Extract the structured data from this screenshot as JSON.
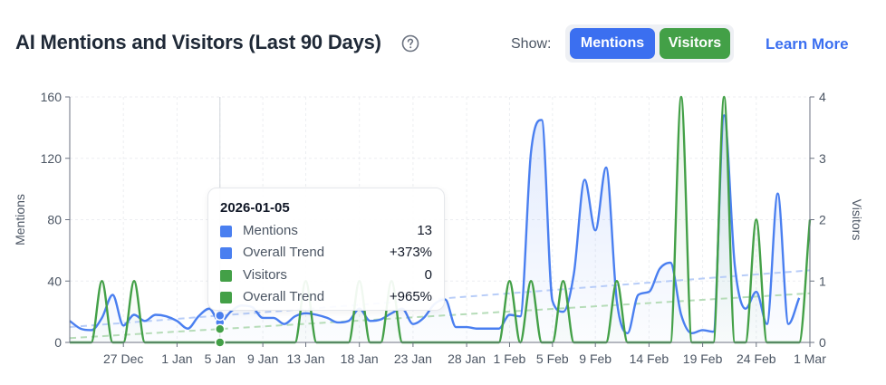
{
  "header": {
    "title": "AI Mentions and Visitors (Last 90 Days)",
    "show_label": "Show:",
    "mentions_button": "Mentions",
    "visitors_button": "Visitors",
    "learn_more": "Learn More",
    "help_icon": "question-circle-icon"
  },
  "colors": {
    "mentions": "#4a7ff0",
    "visitors": "#43a047",
    "mentions_trend": "#b8cdf8",
    "visitors_trend": "#b6dcb8"
  },
  "tooltip": {
    "date": "2026-01-05",
    "rows": [
      {
        "label": "Mentions",
        "value": "13",
        "color": "#4a7ff0"
      },
      {
        "label": "Overall Trend",
        "value": "+373%",
        "color": "#4a7ff0"
      },
      {
        "label": "Visitors",
        "value": "0",
        "color": "#43a047"
      },
      {
        "label": "Overall Trend",
        "value": "+965%",
        "color": "#43a047"
      }
    ]
  },
  "chart_data": {
    "type": "line",
    "x_start": "2025-12-22",
    "x_end": "2026-03-01",
    "xtick_labels": [
      "27 Dec",
      "1 Jan",
      "5 Jan",
      "9 Jan",
      "13 Jan",
      "18 Jan",
      "23 Jan",
      "28 Jan",
      "1 Feb",
      "5 Feb",
      "9 Feb",
      "14 Feb",
      "19 Feb",
      "24 Feb",
      "1 Mar"
    ],
    "xtick_dates": [
      "2025-12-27",
      "2026-01-01",
      "2026-01-05",
      "2026-01-09",
      "2026-01-13",
      "2026-01-18",
      "2026-01-23",
      "2026-01-28",
      "2026-02-01",
      "2026-02-05",
      "2026-02-09",
      "2026-02-14",
      "2026-02-19",
      "2026-02-24",
      "2026-03-01"
    ],
    "ylabel_left": "Mentions",
    "ylabel_right": "Visitors",
    "ylim_left": [
      0,
      160
    ],
    "ylim_right": [
      0,
      4
    ],
    "yticks_left": [
      0,
      40,
      80,
      120,
      160
    ],
    "yticks_right": [
      0,
      1,
      2,
      3,
      4
    ],
    "grid": true,
    "highlight_date": "2026-01-05",
    "series": [
      {
        "name": "Mentions",
        "axis": "left",
        "points": [
          [
            "2025-12-22",
            14
          ],
          [
            "2025-12-23",
            9
          ],
          [
            "2025-12-24",
            8
          ],
          [
            "2025-12-25",
            16
          ],
          [
            "2025-12-26",
            31
          ],
          [
            "2025-12-27",
            11
          ],
          [
            "2025-12-28",
            18
          ],
          [
            "2025-12-29",
            14
          ],
          [
            "2025-12-30",
            18
          ],
          [
            "2025-12-31",
            17
          ],
          [
            "2026-01-01",
            14
          ],
          [
            "2026-01-02",
            9
          ],
          [
            "2026-01-03",
            17
          ],
          [
            "2026-01-04",
            22
          ],
          [
            "2026-01-05",
            13
          ],
          [
            "2026-01-06",
            20
          ],
          [
            "2026-01-07",
            24
          ],
          [
            "2026-01-08",
            23
          ],
          [
            "2026-01-09",
            16
          ],
          [
            "2026-01-10",
            16
          ],
          [
            "2026-01-11",
            12
          ],
          [
            "2026-01-12",
            17
          ],
          [
            "2026-01-13",
            19
          ],
          [
            "2026-01-14",
            18
          ],
          [
            "2026-01-15",
            16
          ],
          [
            "2026-01-16",
            13
          ],
          [
            "2026-01-17",
            14
          ],
          [
            "2026-01-18",
            22
          ],
          [
            "2026-01-19",
            14
          ],
          [
            "2026-01-20",
            15
          ],
          [
            "2026-01-21",
            19
          ],
          [
            "2026-01-22",
            22
          ],
          [
            "2026-01-23",
            12
          ],
          [
            "2026-01-24",
            16
          ],
          [
            "2026-01-25",
            25
          ],
          [
            "2026-01-26",
            28
          ],
          [
            "2026-01-27",
            10
          ],
          [
            "2026-01-28",
            10
          ],
          [
            "2026-01-29",
            9
          ],
          [
            "2026-01-30",
            9
          ],
          [
            "2026-01-31",
            9
          ],
          [
            "2026-02-01",
            18
          ],
          [
            "2026-02-02",
            17
          ],
          [
            "2026-02-03",
            124
          ],
          [
            "2026-02-04",
            145
          ],
          [
            "2026-02-05",
            27
          ],
          [
            "2026-02-06",
            20
          ],
          [
            "2026-02-07",
            45
          ],
          [
            "2026-02-08",
            106
          ],
          [
            "2026-02-09",
            73
          ],
          [
            "2026-02-10",
            114
          ],
          [
            "2026-02-11",
            27
          ],
          [
            "2026-02-12",
            6
          ],
          [
            "2026-02-13",
            31
          ],
          [
            "2026-02-14",
            33
          ],
          [
            "2026-02-15",
            48
          ],
          [
            "2026-02-16",
            52
          ],
          [
            "2026-02-17",
            18
          ],
          [
            "2026-02-18",
            6
          ],
          [
            "2026-02-19",
            8
          ],
          [
            "2026-02-20",
            7
          ],
          [
            "2026-02-21",
            148
          ],
          [
            "2026-02-22",
            50
          ],
          [
            "2026-02-23",
            22
          ],
          [
            "2026-02-24",
            33
          ],
          [
            "2026-02-25",
            12
          ],
          [
            "2026-02-26",
            97
          ],
          [
            "2026-02-27",
            12
          ],
          [
            "2026-02-28",
            29
          ]
        ]
      },
      {
        "name": "Visitors",
        "axis": "right",
        "points": [
          [
            "2025-12-22",
            0
          ],
          [
            "2025-12-23",
            0
          ],
          [
            "2025-12-24",
            0
          ],
          [
            "2025-12-25",
            1
          ],
          [
            "2025-12-26",
            0
          ],
          [
            "2025-12-27",
            0
          ],
          [
            "2025-12-28",
            1
          ],
          [
            "2025-12-29",
            0
          ],
          [
            "2025-12-30",
            0
          ],
          [
            "2025-12-31",
            0
          ],
          [
            "2026-01-01",
            0
          ],
          [
            "2026-01-02",
            0
          ],
          [
            "2026-01-03",
            0
          ],
          [
            "2026-01-04",
            0
          ],
          [
            "2026-01-05",
            0
          ],
          [
            "2026-01-06",
            0
          ],
          [
            "2026-01-07",
            0
          ],
          [
            "2026-01-08",
            0
          ],
          [
            "2026-01-09",
            0
          ],
          [
            "2026-01-10",
            0
          ],
          [
            "2026-01-11",
            0
          ],
          [
            "2026-01-12",
            0
          ],
          [
            "2026-01-13",
            1
          ],
          [
            "2026-01-14",
            0
          ],
          [
            "2026-01-15",
            0
          ],
          [
            "2026-01-16",
            0
          ],
          [
            "2026-01-17",
            0
          ],
          [
            "2026-01-18",
            1
          ],
          [
            "2026-01-19",
            0
          ],
          [
            "2026-01-20",
            0
          ],
          [
            "2026-01-21",
            1
          ],
          [
            "2026-01-22",
            0
          ],
          [
            "2026-01-23",
            0
          ],
          [
            "2026-01-24",
            0
          ],
          [
            "2026-01-25",
            0
          ],
          [
            "2026-01-26",
            0
          ],
          [
            "2026-01-27",
            0
          ],
          [
            "2026-01-28",
            0
          ],
          [
            "2026-01-29",
            0
          ],
          [
            "2026-01-30",
            0
          ],
          [
            "2026-01-31",
            0
          ],
          [
            "2026-02-01",
            1
          ],
          [
            "2026-02-02",
            0
          ],
          [
            "2026-02-03",
            1
          ],
          [
            "2026-02-04",
            0
          ],
          [
            "2026-02-05",
            0
          ],
          [
            "2026-02-06",
            1
          ],
          [
            "2026-02-07",
            0
          ],
          [
            "2026-02-08",
            0
          ],
          [
            "2026-02-09",
            0
          ],
          [
            "2026-02-10",
            0
          ],
          [
            "2026-02-11",
            1
          ],
          [
            "2026-02-12",
            0
          ],
          [
            "2026-02-13",
            0
          ],
          [
            "2026-02-14",
            0
          ],
          [
            "2026-02-15",
            0
          ],
          [
            "2026-02-16",
            0
          ],
          [
            "2026-02-17",
            4
          ],
          [
            "2026-02-18",
            0
          ],
          [
            "2026-02-19",
            0
          ],
          [
            "2026-02-20",
            0
          ],
          [
            "2026-02-21",
            4
          ],
          [
            "2026-02-22",
            0
          ],
          [
            "2026-02-23",
            0
          ],
          [
            "2026-02-24",
            2
          ],
          [
            "2026-02-25",
            0
          ],
          [
            "2026-02-26",
            0
          ],
          [
            "2026-02-27",
            0
          ],
          [
            "2026-02-28",
            0
          ],
          [
            "2026-03-01",
            2
          ]
        ]
      },
      {
        "name": "Overall Trend",
        "axis": "left",
        "style": "dashed",
        "points": [
          [
            "2025-12-22",
            10
          ],
          [
            "2026-03-01",
            47
          ]
        ]
      },
      {
        "name": "Overall Trend",
        "axis": "right",
        "style": "dashed",
        "points": [
          [
            "2025-12-22",
            0.07
          ],
          [
            "2026-03-01",
            0.8
          ]
        ]
      }
    ]
  }
}
